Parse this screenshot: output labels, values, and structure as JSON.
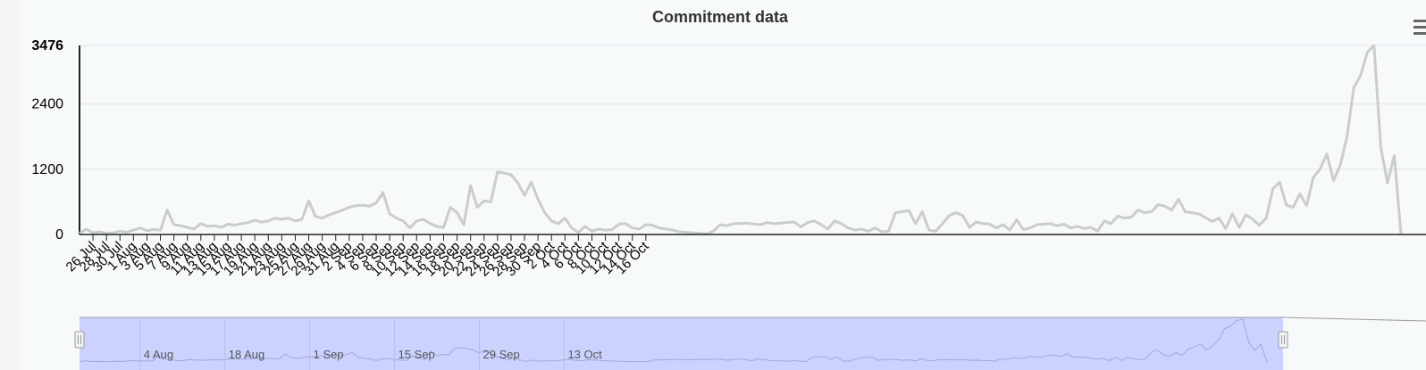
{
  "chart_data": {
    "type": "line",
    "title": "Commitment data",
    "xlabel": "",
    "ylabel": "",
    "ylim": [
      0,
      3476
    ],
    "y_ticks": [
      "0",
      "1200",
      "2400",
      "3476"
    ],
    "x_ticks": [
      "26 Jul",
      "28 Jul",
      "30 Jul",
      "1 Aug",
      "3 Aug",
      "5 Aug",
      "7 Aug",
      "9 Aug",
      "11 Aug",
      "13 Aug",
      "15 Aug",
      "17 Aug",
      "19 Aug",
      "21 Aug",
      "23 Aug",
      "25 Aug",
      "27 Aug",
      "29 Aug",
      "31 Aug",
      "2 Sep",
      "4 Sep",
      "6 Sep",
      "8 Sep",
      "10 Sep",
      "12 Sep",
      "14 Sep",
      "16 Sep",
      "18 Sep",
      "20 Sep",
      "22 Sep",
      "24 Sep",
      "26 Sep",
      "28 Sep",
      "30 Sep",
      "2 Oct",
      "4 Oct",
      "6 Oct",
      "8 Oct",
      "10 Oct",
      "12 Oct",
      "14 Oct",
      "16 Oct"
    ],
    "grid": true,
    "series_color": "#cccccc",
    "values": [
      20,
      100,
      30,
      50,
      20,
      30,
      60,
      40,
      80,
      120,
      70,
      90,
      80,
      450,
      180,
      160,
      130,
      100,
      200,
      150,
      160,
      130,
      190,
      170,
      200,
      220,
      260,
      230,
      250,
      300,
      280,
      300,
      250,
      280,
      620,
      330,
      300,
      360,
      400,
      450,
      500,
      530,
      540,
      520,
      580,
      770,
      380,
      300,
      250,
      120,
      250,
      280,
      200,
      150,
      130,
      500,
      400,
      180,
      900,
      500,
      620,
      600,
      1150,
      1130,
      1100,
      950,
      720,
      960,
      650,
      400,
      250,
      200,
      300,
      120,
      40,
      150,
      60,
      100,
      80,
      90,
      190,
      200,
      120,
      100,
      180,
      170,
      120,
      100,
      80,
      50,
      40,
      30,
      20,
      10,
      60,
      180,
      160,
      200,
      200,
      210,
      190,
      180,
      220,
      200,
      210,
      220,
      230,
      140,
      220,
      250,
      180,
      100,
      250,
      200,
      120,
      80,
      100,
      60,
      120,
      50,
      60,
      400,
      420,
      440,
      200,
      420,
      80,
      60,
      200,
      350,
      400,
      350,
      130,
      230,
      200,
      190,
      120,
      180,
      80,
      270,
      90,
      120,
      180,
      190,
      200,
      160,
      190,
      120,
      150,
      110,
      130,
      60,
      250,
      200,
      340,
      300,
      320,
      450,
      400,
      420,
      550,
      520,
      450,
      650,
      420,
      400,
      380,
      310,
      240,
      300,
      110,
      380,
      130,
      360,
      280,
      170,
      300,
      840,
      960,
      540,
      500,
      750,
      530,
      1050,
      1200,
      1480,
      990,
      1280,
      1800,
      2700,
      2920,
      3350,
      3476,
      1600,
      950,
      1450,
      0
    ],
    "navigator": {
      "labels": [
        "4 Aug",
        "18 Aug",
        "1 Sep",
        "15 Sep",
        "29 Sep",
        "13 Oct"
      ]
    }
  },
  "ui": {
    "menu_icon": "hamburger-icon",
    "handle_icon": "drag-handle-icon"
  }
}
